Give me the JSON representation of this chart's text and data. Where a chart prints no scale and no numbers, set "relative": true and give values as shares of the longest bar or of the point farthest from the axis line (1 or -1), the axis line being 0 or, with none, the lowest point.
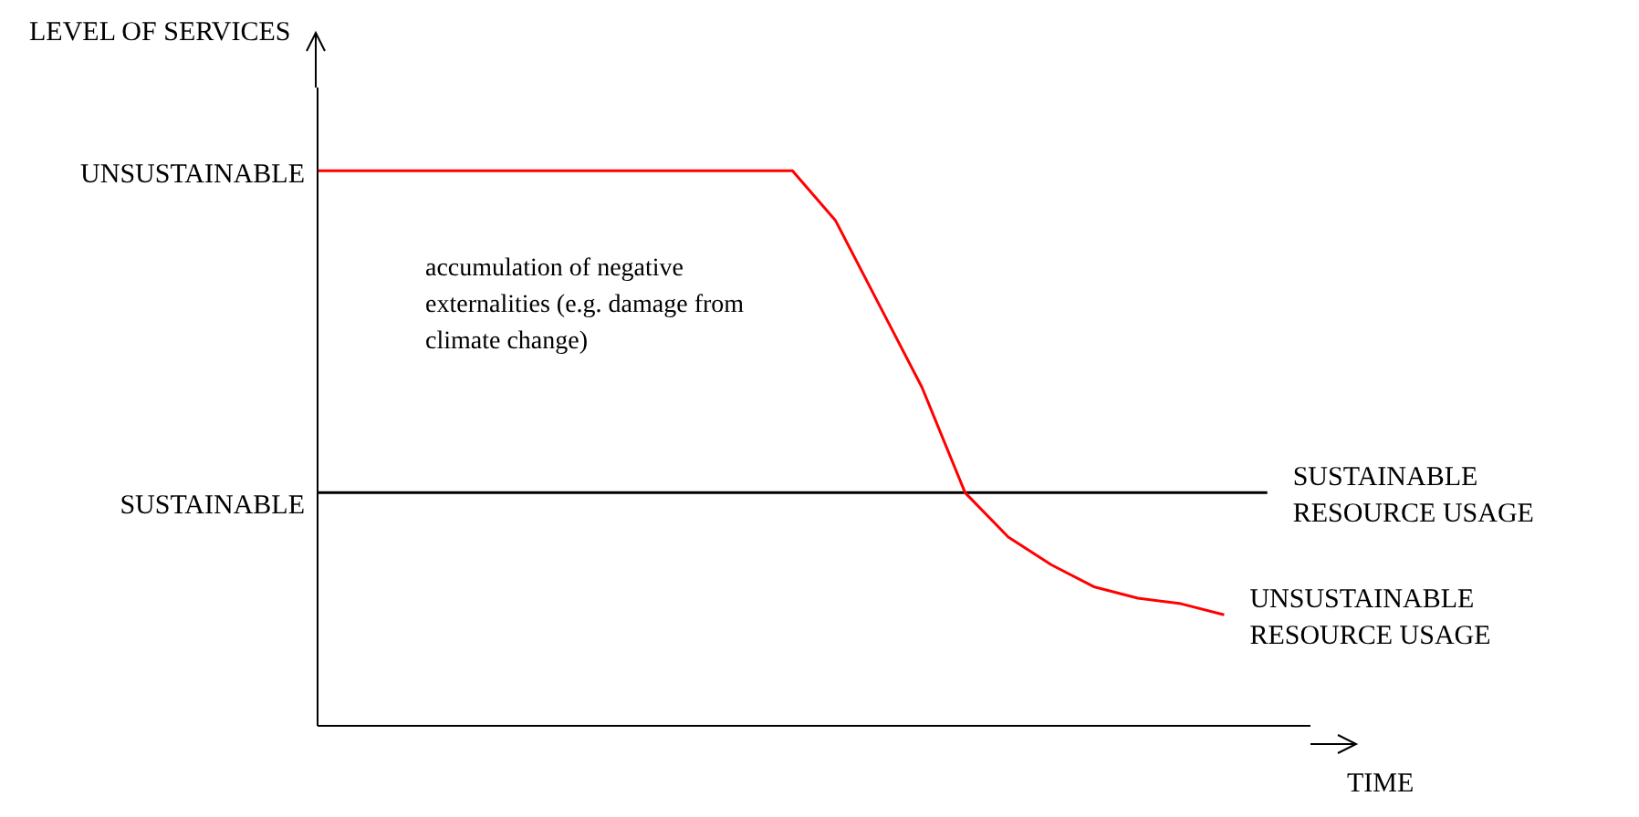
{
  "chart_data": {
    "type": "line",
    "relative": true,
    "ylabel": "LEVEL OF SERVICES",
    "xlabel": "TIME",
    "categories": [
      null,
      null,
      null,
      null,
      null,
      null,
      null,
      null,
      null,
      null,
      null,
      null,
      null,
      null,
      null,
      null,
      null,
      null,
      null,
      null,
      null,
      null,
      null
    ],
    "series": [
      {
        "name": "SUSTAINABLE RESOURCE USAGE",
        "color": "#000000",
        "values": [
          0.42,
          0.42,
          0.42,
          0.42,
          0.42,
          0.42,
          0.42,
          0.42,
          0.42,
          0.42,
          0.42,
          0.42,
          0.42,
          0.42,
          0.42,
          0.42,
          0.42,
          0.42,
          0.42,
          0.42,
          0.42,
          0.42,
          0.42
        ]
      },
      {
        "name": "UNSUSTAINABLE RESOURCE USAGE",
        "color": "#ff0000",
        "values": [
          1,
          1,
          1,
          1,
          1,
          1,
          1,
          1,
          1,
          1,
          1,
          1,
          0.91,
          0.76,
          0.61,
          0.42,
          0.34,
          0.29,
          0.25,
          0.23,
          0.22,
          0.2,
          null
        ]
      }
    ],
    "annotations": [
      "UNSUSTAINABLE",
      "SUSTAINABLE",
      "accumulation of negative externalities (e.g. damage from climate change)"
    ],
    "marker": "none",
    "grid": false,
    "legend": false
  }
}
